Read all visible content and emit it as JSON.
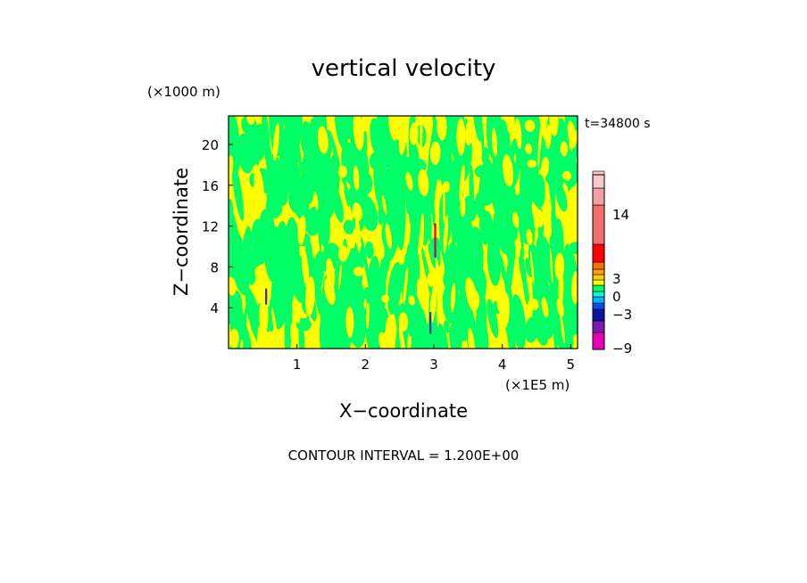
{
  "chart_data": {
    "type": "heatmap",
    "title": "vertical velocity",
    "xlabel": "X−coordinate",
    "ylabel": "Z−coordinate",
    "x_unit": "(×1E5 m)",
    "y_unit": "(×1000 m)",
    "time_label": "t=34800 s",
    "footer": "CONTOUR INTERVAL = 1.200E+00",
    "xlim": [
      0,
      5.1
    ],
    "ylim": [
      0,
      22.8
    ],
    "x_ticks": [
      1,
      2,
      3,
      4,
      5
    ],
    "y_ticks": [
      4,
      8,
      12,
      16,
      20
    ],
    "x_tick_labels": [
      "1",
      "2",
      "3",
      "4",
      "5"
    ],
    "y_tick_labels": [
      "4",
      "8",
      "12",
      "16",
      "20"
    ],
    "field_colors": {
      "negative_small": "#00ff66",
      "positive_small": "#ffff00",
      "strong_up": "#d4004c",
      "strong_down": "#3a2aa8"
    },
    "features": [
      {
        "name": "narrow column near x=0.55",
        "x": 0.55,
        "z_min": 4.4,
        "z_max": 5.8,
        "color": "#3a2aa8"
      },
      {
        "name": "narrow column near x=3.0",
        "x": 3.02,
        "z_min": 9.0,
        "z_max": 12.2,
        "color": "#d4004c"
      },
      {
        "name": "weak column near x=2.95",
        "x": 2.95,
        "z_min": 1.5,
        "z_max": 3.5,
        "color": "#3a2aa8"
      }
    ],
    "colorbar": {
      "bands": [
        {
          "color": "#e600b4"
        },
        {
          "color": "#7a1ab4"
        },
        {
          "color": "#0a14a0"
        },
        {
          "color": "#0050e6"
        },
        {
          "color": "#00b4ff"
        },
        {
          "color": "#00ffd2"
        },
        {
          "color": "#00ff66"
        },
        {
          "color": "#ffff00"
        },
        {
          "color": "#ffd200"
        },
        {
          "color": "#ffa000"
        },
        {
          "color": "#ff6e00"
        },
        {
          "color": "#ff0000"
        },
        {
          "color": "#f06e6e"
        },
        {
          "color": "#f4a0a0"
        },
        {
          "color": "#f8c8c8"
        }
      ],
      "labels": [
        "−9",
        "−3",
        "0",
        "3",
        "14"
      ]
    }
  }
}
